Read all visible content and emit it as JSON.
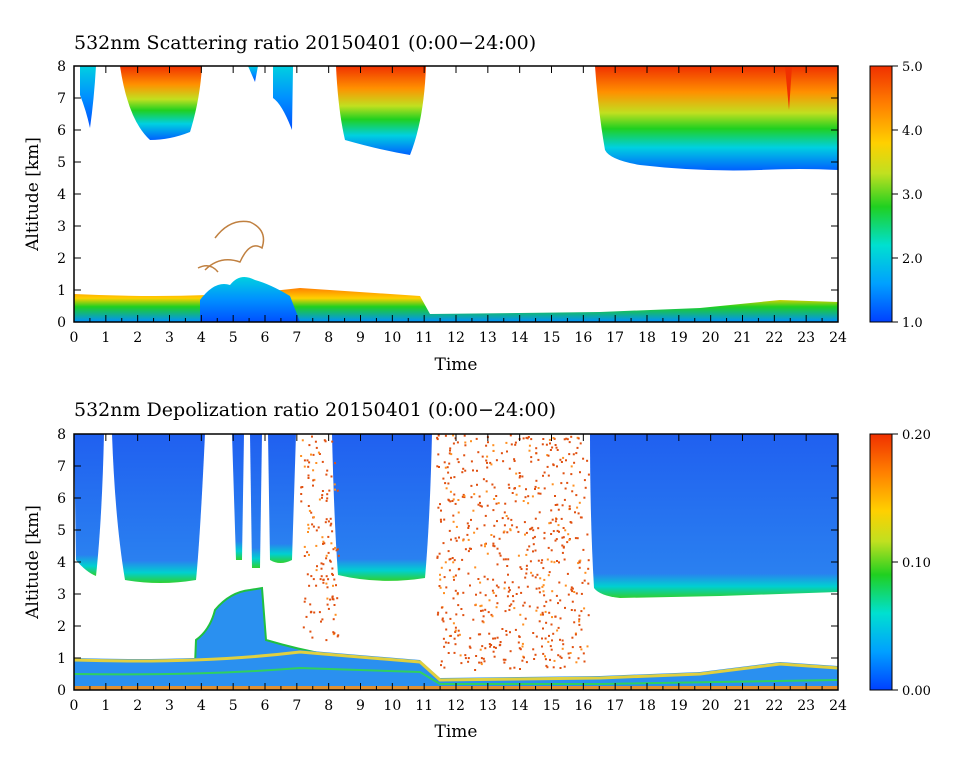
{
  "chart_data": [
    {
      "type": "heatmap",
      "title": "532nm Scattering ratio  20150401 (0:00−24:00)",
      "xlabel": "Time",
      "ylabel": "Altitude [km]",
      "xlim": [
        0,
        24
      ],
      "ylim": [
        0,
        8
      ],
      "x_ticks": [
        "0",
        "1",
        "2",
        "3",
        "4",
        "5",
        "6",
        "7",
        "8",
        "9",
        "10",
        "11",
        "12",
        "13",
        "14",
        "15",
        "16",
        "17",
        "18",
        "19",
        "20",
        "21",
        "22",
        "23",
        "24"
      ],
      "y_ticks": [
        "0",
        "1",
        "2",
        "3",
        "4",
        "5",
        "6",
        "7",
        "8"
      ],
      "colorbar": {
        "min": 1.0,
        "max": 5.0,
        "labels": [
          "1.0",
          "2.0",
          "3.0",
          "4.0",
          "5.0"
        ]
      },
      "colormap": [
        "#0040ff",
        "#00a0ff",
        "#00e0d0",
        "#20d020",
        "#c0e020",
        "#ffd000",
        "#ff8000",
        "#f03000"
      ]
    },
    {
      "type": "heatmap",
      "title": "532nm Depolization ratio  20150401 (0:00−24:00)",
      "xlabel": "Time",
      "ylabel": "Altitude [km]",
      "xlim": [
        0,
        24
      ],
      "ylim": [
        0,
        8
      ],
      "x_ticks": [
        "0",
        "1",
        "2",
        "3",
        "4",
        "5",
        "6",
        "7",
        "8",
        "9",
        "10",
        "11",
        "12",
        "13",
        "14",
        "15",
        "16",
        "17",
        "18",
        "19",
        "20",
        "21",
        "22",
        "23",
        "24"
      ],
      "y_ticks": [
        "0",
        "1",
        "2",
        "3",
        "4",
        "5",
        "6",
        "7",
        "8"
      ],
      "colorbar": {
        "min": 0.0,
        "max": 0.2,
        "labels": [
          "0.00",
          "0.10",
          "0.20"
        ]
      },
      "colormap": [
        "#0040ff",
        "#00a0ff",
        "#00e0d0",
        "#20d020",
        "#c0e020",
        "#ffd000",
        "#ff8000",
        "#f03000"
      ]
    }
  ]
}
